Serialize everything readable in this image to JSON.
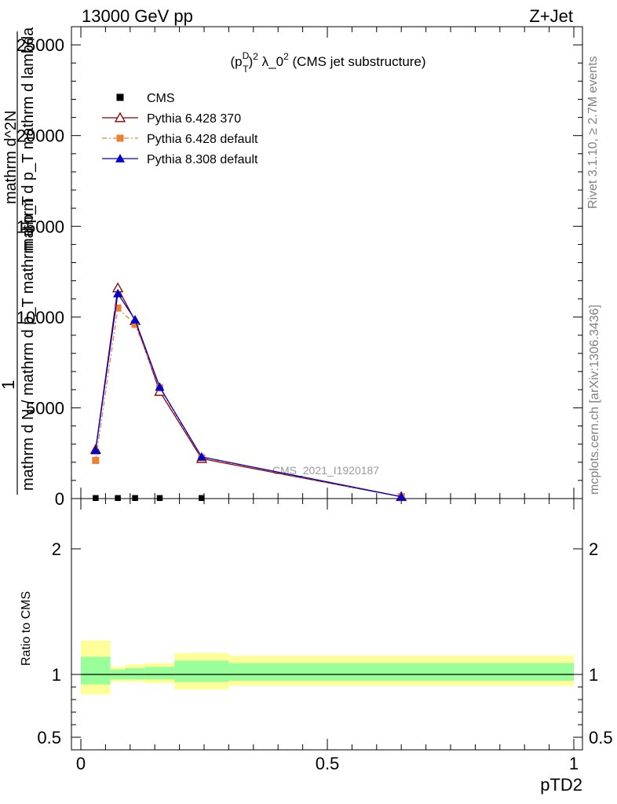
{
  "header": {
    "left": "13000 GeV pp",
    "right": "Z+Jet"
  },
  "side_labels": {
    "rivet": "Rivet 3.1.10, ≥ 2.7M events",
    "mcplots": "mcplots.cern.ch [arXiv:1306.3436]"
  },
  "watermark": "CMS_2021_I1920187",
  "chart_data": [
    {
      "type": "line",
      "title": "(p_T^D)^2 λ_0^2 (CMS jet substructure)",
      "title_parts": {
        "a": "(p",
        "sub1": "T",
        "sup1": "D",
        "b": ")",
        "sup2": "2",
        "c": " λ_0",
        "sup3": "2",
        "d": " (CMS jet substructure)"
      },
      "ylabel_top": "1",
      "ylabel_bottom": "mathrm d N / mathrm d p_T mathrm d p_T",
      "ylabel_num": "mathrm d^2N",
      "ylabel_den": "mathrm d p_T mathrm d lambda",
      "xlim": [
        0,
        1
      ],
      "ylim": [
        0,
        26000
      ],
      "yticks": [
        "0",
        "5000",
        "10000",
        "15000",
        "20000",
        "25000"
      ],
      "ytick_values": [
        0,
        5000,
        10000,
        15000,
        20000,
        25000
      ],
      "grid": false,
      "legend_position": "top-left",
      "series": [
        {
          "name": "CMS",
          "color": "#000000",
          "marker": "square",
          "line": "none",
          "x": [
            0.03,
            0.075,
            0.11,
            0.16,
            0.245
          ],
          "y": [
            30,
            30,
            30,
            30,
            30
          ]
        },
        {
          "name": "Pythia 6.428 370",
          "color": "#8b0000",
          "marker": "open-triangle",
          "line": "solid",
          "x": [
            0.03,
            0.075,
            0.11,
            0.16,
            0.245,
            0.65
          ],
          "y": [
            2700,
            11600,
            9800,
            5900,
            2200,
            100
          ]
        },
        {
          "name": "Pythia 6.428 default",
          "color": "#f08030",
          "marker": "filled-square",
          "line": "dashdot",
          "x": [
            0.03,
            0.075,
            0.11,
            0.16,
            0.245,
            0.65
          ],
          "y": [
            2100,
            10500,
            9600,
            6100,
            2250,
            110
          ]
        },
        {
          "name": "Pythia 8.308 default",
          "color": "#0000cc",
          "marker": "filled-triangle",
          "line": "solid",
          "x": [
            0.03,
            0.075,
            0.11,
            0.16,
            0.245,
            0.65
          ],
          "y": [
            2650,
            11300,
            9850,
            6150,
            2300,
            105
          ]
        }
      ]
    },
    {
      "type": "area",
      "ylabel": "Ratio to CMS",
      "xlabel": "pTD2",
      "xlim": [
        0,
        1
      ],
      "ylim": [
        0.4,
        2.4
      ],
      "yticks": [
        "0.5",
        "1",
        "2"
      ],
      "ytick_values": [
        0.5,
        1,
        2
      ],
      "xticks": [
        "0",
        "0.5",
        "1"
      ],
      "xtick_values": [
        0,
        0.5,
        1
      ],
      "reference_line": 1,
      "bins": [
        {
          "lo": 0.0,
          "hi": 0.06,
          "outer": [
            0.84,
            1.27
          ],
          "inner": [
            0.92,
            1.14
          ]
        },
        {
          "lo": 0.06,
          "hi": 0.09,
          "outer": [
            0.94,
            1.06
          ],
          "inner": [
            0.96,
            1.04
          ]
        },
        {
          "lo": 0.09,
          "hi": 0.13,
          "outer": [
            0.94,
            1.08
          ],
          "inner": [
            0.96,
            1.05
          ]
        },
        {
          "lo": 0.13,
          "hi": 0.19,
          "outer": [
            0.93,
            1.09
          ],
          "inner": [
            0.96,
            1.06
          ]
        },
        {
          "lo": 0.19,
          "hi": 0.3,
          "outer": [
            0.88,
            1.17
          ],
          "inner": [
            0.94,
            1.11
          ]
        },
        {
          "lo": 0.3,
          "hi": 1.0,
          "outer": [
            0.91,
            1.15
          ],
          "inner": [
            0.95,
            1.09
          ]
        }
      ],
      "colors": {
        "outer": "#ffff99",
        "inner": "#99ff99"
      }
    }
  ]
}
